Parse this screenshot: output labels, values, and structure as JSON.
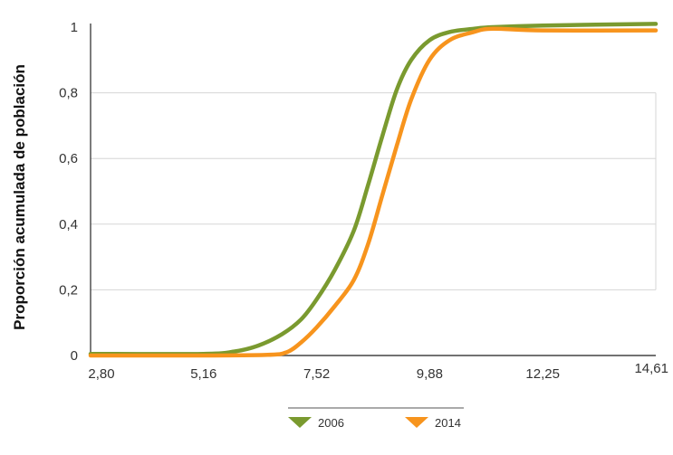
{
  "chart_data": {
    "type": "line",
    "title": "",
    "xlabel": "",
    "ylabel": "Proporción acumulada de población",
    "x_ticks": [
      "2,80",
      "5,16",
      "7,52",
      "9,88",
      "12,25",
      "14,61"
    ],
    "y_ticks": [
      "0",
      "0,2",
      "0,4",
      "0,6",
      "0,8",
      "1"
    ],
    "xlim": [
      2.8,
      14.61
    ],
    "ylim": [
      0,
      1
    ],
    "grid": "horizontal",
    "legend_position": "bottom",
    "series": [
      {
        "name": "2006",
        "color": "#7a9a2f",
        "x": [
          2.8,
          5.16,
          5.8,
          6.3,
          6.8,
          7.2,
          7.52,
          7.9,
          8.3,
          8.6,
          8.9,
          9.2,
          9.5,
          9.88,
          10.3,
          10.8,
          11.2,
          12.25,
          14.61
        ],
        "y": [
          0.005,
          0.005,
          0.012,
          0.03,
          0.065,
          0.11,
          0.17,
          0.26,
          0.38,
          0.52,
          0.67,
          0.81,
          0.9,
          0.96,
          0.985,
          0.995,
          1.0,
          1.005,
          1.01
        ]
      },
      {
        "name": "2014",
        "color": "#f7941d",
        "x": [
          2.8,
          5.16,
          6.5,
          6.9,
          7.2,
          7.52,
          7.9,
          8.3,
          8.6,
          8.9,
          9.2,
          9.5,
          9.88,
          10.3,
          10.8,
          11.2,
          12.25,
          14.61
        ],
        "y": [
          0.0,
          0.0,
          0.002,
          0.01,
          0.04,
          0.085,
          0.15,
          0.23,
          0.34,
          0.49,
          0.64,
          0.78,
          0.9,
          0.96,
          0.985,
          0.995,
          0.99,
          0.99
        ]
      }
    ]
  }
}
